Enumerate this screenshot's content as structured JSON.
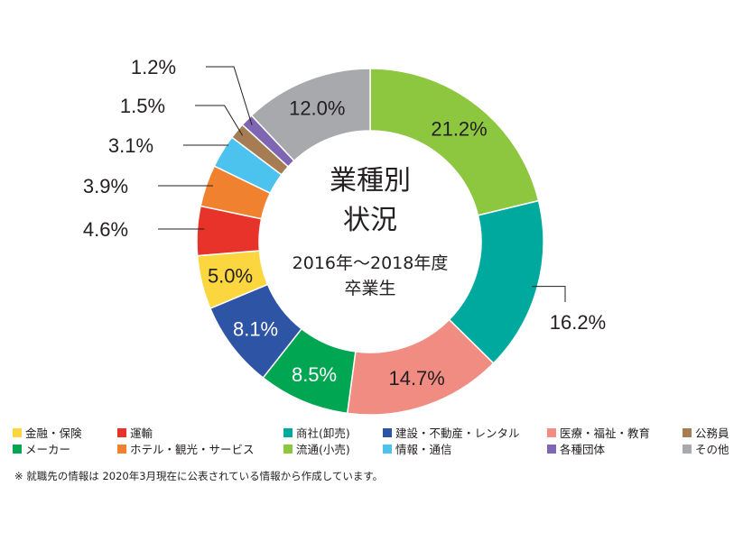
{
  "chart_data": {
    "type": "pie",
    "title_lines": [
      "業種別",
      "状況"
    ],
    "subtitle_lines": [
      "2016年～2018年度",
      "卒業生"
    ],
    "slices": [
      {
        "label": "流通(小売)",
        "value": 21.2,
        "display": "21.2%",
        "color": "#8dc63f"
      },
      {
        "label": "商社(卸売)",
        "value": 16.2,
        "display": "16.2%",
        "color": "#00a99d"
      },
      {
        "label": "医療・福祉・教育",
        "value": 14.7,
        "display": "14.7%",
        "color": "#f18c83"
      },
      {
        "label": "メーカー",
        "value": 8.5,
        "display": "8.5%",
        "color": "#00a651"
      },
      {
        "label": "建設・不動産・レンタル",
        "value": 8.1,
        "display": "8.1%",
        "color": "#2e54a5"
      },
      {
        "label": "金融・保険",
        "value": 5.0,
        "display": "5.0%",
        "color": "#fcd63f"
      },
      {
        "label": "運輸",
        "value": 4.6,
        "display": "4.6%",
        "color": "#e8332a"
      },
      {
        "label": "ホテル・観光・サービス",
        "value": 3.9,
        "display": "3.9%",
        "color": "#f0812f"
      },
      {
        "label": "情報・通信",
        "value": 3.1,
        "display": "3.1%",
        "color": "#4cc3ef"
      },
      {
        "label": "公務員",
        "value": 1.5,
        "display": "1.5%",
        "color": "#a67c52"
      },
      {
        "label": "各種団体",
        "value": 1.2,
        "display": "1.2%",
        "color": "#7f66b3"
      },
      {
        "label": "その他",
        "value": 12.0,
        "display": "12.0%",
        "color": "#a7a9ac"
      }
    ],
    "legend_rows": [
      [
        "金融・保険",
        "運輸",
        "商社(卸売)",
        "建設・不動産・レンタル",
        "医療・福祉・教育",
        "公務員"
      ],
      [
        "メーカー",
        "ホテル・観光・サービス",
        "流通(小売)",
        "情報・通信",
        "各種団体",
        "その他"
      ]
    ],
    "note": "※ 就職先の情報は 2020年3月現在に公表されている情報から作成しています。"
  }
}
